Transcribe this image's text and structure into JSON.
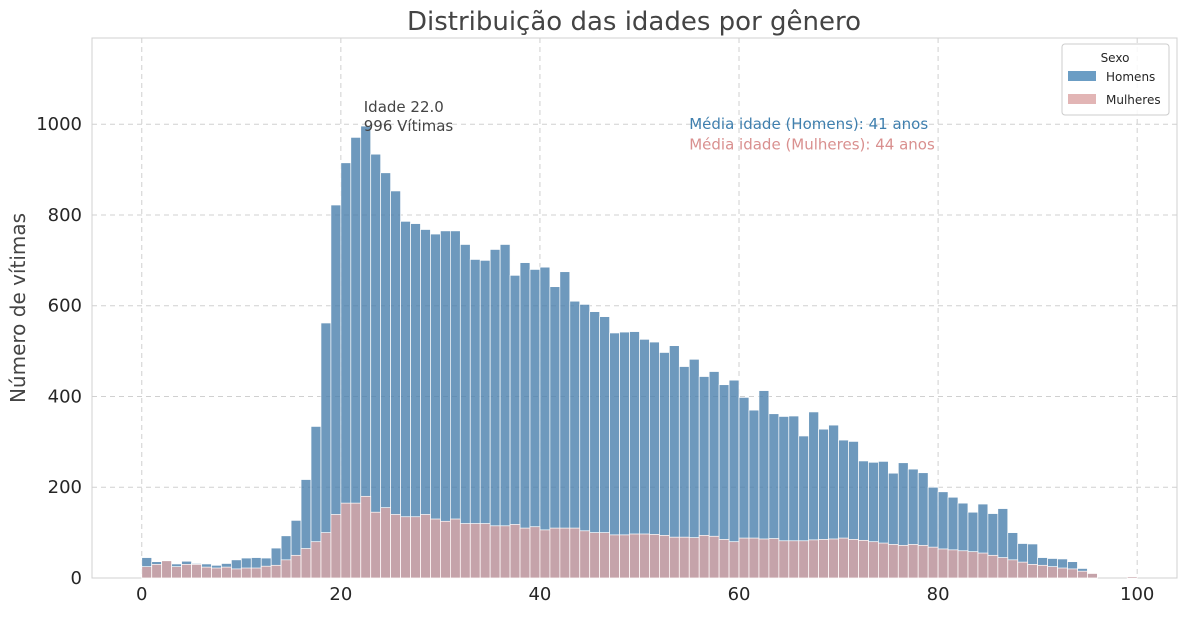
{
  "chart_data": {
    "type": "bar",
    "title": "Distribuição das idades por gênero",
    "xlabel": "",
    "ylabel": "Número de vítimas",
    "xlim": [
      -5,
      104
    ],
    "ylim": [
      0,
      1190
    ],
    "x_ticks": [
      0,
      20,
      40,
      60,
      80,
      100
    ],
    "y_ticks": [
      0,
      200,
      400,
      600,
      800,
      1000
    ],
    "grid": true,
    "bin_start": 0,
    "bin_width": 1,
    "series": [
      {
        "name": "Homens",
        "color": "#4a80ad",
        "values": [
          45,
          36,
          38,
          31,
          37,
          32,
          31,
          28,
          32,
          40,
          44,
          45,
          44,
          66,
          93,
          127,
          217,
          334,
          562,
          822,
          915,
          971,
          996,
          934,
          893,
          853,
          786,
          781,
          768,
          758,
          765,
          765,
          735,
          702,
          700,
          724,
          735,
          667,
          695,
          680,
          685,
          642,
          675,
          610,
          603,
          587,
          576,
          540,
          542,
          543,
          526,
          520,
          497,
          512,
          466,
          482,
          444,
          455,
          426,
          436,
          398,
          370,
          413,
          362,
          356,
          357,
          313,
          366,
          328,
          337,
          304,
          301,
          258,
          255,
          257,
          231,
          254,
          240,
          232,
          200,
          190,
          178,
          165,
          145,
          163,
          142,
          153,
          100,
          76,
          75,
          45,
          43,
          42,
          36,
          21,
          10,
          0,
          0,
          0,
          4,
          0
        ]
      },
      {
        "name": "Mulheres",
        "color": "#dba5a5",
        "values": [
          25,
          30,
          38,
          25,
          30,
          30,
          24,
          22,
          24,
          20,
          22,
          22,
          26,
          28,
          40,
          50,
          65,
          80,
          100,
          140,
          165,
          165,
          180,
          145,
          155,
          140,
          135,
          135,
          140,
          130,
          125,
          130,
          120,
          120,
          120,
          115,
          115,
          118,
          110,
          113,
          106,
          110,
          110,
          110,
          104,
          100,
          100,
          95,
          95,
          97,
          97,
          96,
          94,
          90,
          90,
          89,
          94,
          92,
          85,
          80,
          88,
          88,
          86,
          87,
          82,
          82,
          82,
          84,
          85,
          86,
          88,
          85,
          83,
          80,
          77,
          74,
          72,
          74,
          72,
          68,
          64,
          62,
          60,
          58,
          55,
          50,
          45,
          40,
          35,
          30,
          28,
          25,
          22,
          20,
          15,
          10,
          0,
          0,
          0,
          3,
          0
        ]
      }
    ],
    "annotations": [
      {
        "x": 22,
        "y": 996,
        "line1": "Idade 22.0",
        "line2": "996 Vítimas"
      }
    ],
    "mean_labels": [
      {
        "text": "Média idade (Homens): 41 anos",
        "color": "#3f7fae",
        "x": 55,
        "y": 1000
      },
      {
        "text": "Média idade (Mulheres): 44 anos",
        "color": "#d9908f",
        "x": 55,
        "y": 955
      }
    ],
    "legend": {
      "title": "Sexo",
      "placement": "top-right",
      "items": [
        {
          "label": "Homens",
          "color": "#6b9dc4"
        },
        {
          "label": "Mulheres",
          "color": "#e2b5b5"
        }
      ]
    }
  }
}
